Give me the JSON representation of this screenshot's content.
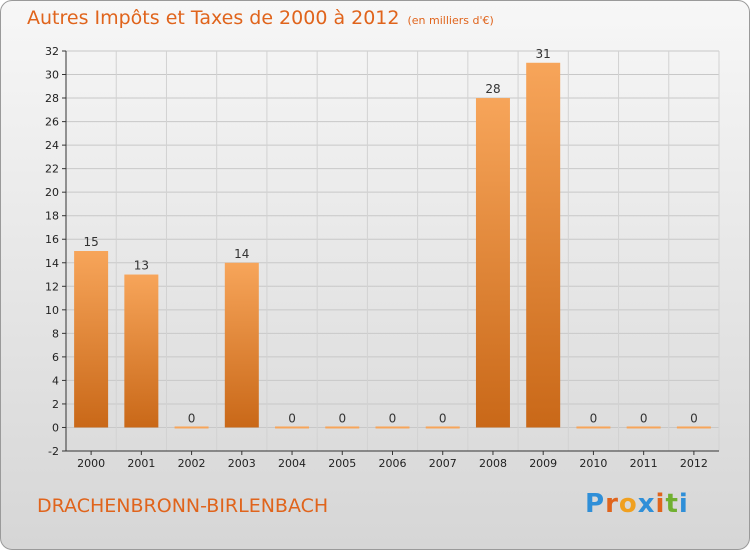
{
  "header": {
    "title": "Autres Impôts et Taxes de 2000 à 2012",
    "unit": "(en milliers d'€)"
  },
  "footer": {
    "commune": "DRACHENBRONN-BIRLENBACH",
    "logo": [
      "P",
      "r",
      "o",
      "x",
      "i",
      "t",
      "i"
    ]
  },
  "colors": {
    "accent": "#e0641c",
    "bar_light": "#f7a55a",
    "bar_dark": "#c96818",
    "logo": [
      "#2f8fd8",
      "#e0641c",
      "#f0a020",
      "#2f8fd8",
      "#e0641c",
      "#70b030",
      "#2f8fd8"
    ]
  },
  "chart_data": {
    "type": "bar",
    "title": "Autres Impôts et Taxes de 2000 à 2012",
    "subtitle": "(en milliers d'€)",
    "categories": [
      "2000",
      "2001",
      "2002",
      "2003",
      "2004",
      "2005",
      "2006",
      "2007",
      "2008",
      "2009",
      "2010",
      "2011",
      "2012"
    ],
    "values": [
      15,
      13,
      0,
      14,
      0,
      0,
      0,
      0,
      28,
      31,
      0,
      0,
      0
    ],
    "ylim": [
      -2,
      32
    ],
    "yticks": [
      -2,
      0,
      2,
      4,
      6,
      8,
      10,
      12,
      14,
      16,
      18,
      20,
      22,
      24,
      26,
      28,
      30,
      32
    ],
    "grid": true,
    "xlabel": "",
    "ylabel": ""
  }
}
